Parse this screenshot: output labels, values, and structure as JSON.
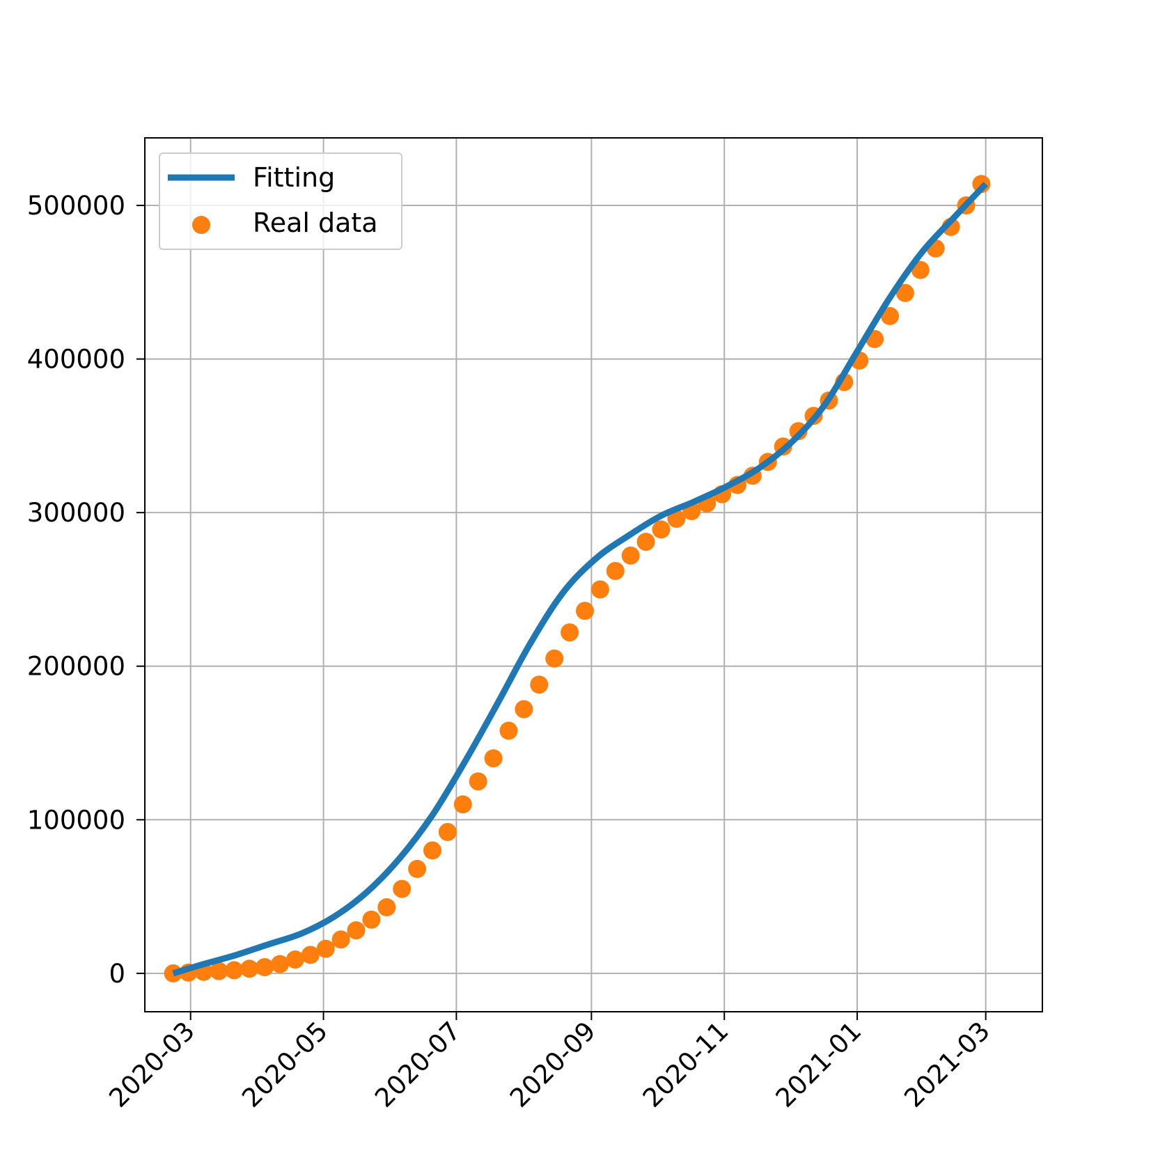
{
  "chart_data": {
    "type": "line",
    "title": "",
    "xlabel": "",
    "ylabel": "",
    "x_axis": {
      "kind": "date",
      "range": [
        "2020-02-09",
        "2021-03-27"
      ],
      "ticks": [
        "2020-03-01",
        "2020-05-01",
        "2020-07-01",
        "2020-09-01",
        "2020-11-01",
        "2021-01-01",
        "2021-03-01"
      ],
      "tick_labels": [
        "2020-03",
        "2020-05",
        "2020-07",
        "2020-09",
        "2020-11",
        "2021-01",
        "2021-03"
      ]
    },
    "y_axis": {
      "range": [
        -25000,
        544000
      ],
      "ticks": [
        0,
        100000,
        200000,
        300000,
        400000,
        500000
      ],
      "tick_labels": [
        "0",
        "100000",
        "200000",
        "300000",
        "400000",
        "500000"
      ]
    },
    "grid": true,
    "legend": {
      "placement": "top-left",
      "entries": [
        "Fitting",
        "Real data"
      ]
    },
    "colors": {
      "fitting": "#1f77b4",
      "real_data": "#ff7f0e",
      "grid": "#b0b0b0"
    },
    "series": [
      {
        "name": "Fitting",
        "kind": "line",
        "x": [
          "2020-02-22",
          "2020-03-07",
          "2020-03-22",
          "2020-04-06",
          "2020-04-21",
          "2020-05-06",
          "2020-05-21",
          "2020-06-05",
          "2020-06-20",
          "2020-07-05",
          "2020-07-20",
          "2020-08-04",
          "2020-08-19",
          "2020-09-03",
          "2020-09-18",
          "2020-10-03",
          "2020-10-18",
          "2020-11-02",
          "2020-11-17",
          "2020-12-02",
          "2020-12-17",
          "2021-01-01",
          "2021-01-16",
          "2021-01-31",
          "2021-02-15",
          "2021-03-01"
        ],
        "y": [
          0,
          6000,
          12000,
          19000,
          26000,
          37000,
          53000,
          75000,
          103000,
          138000,
          176000,
          215000,
          248000,
          270000,
          285000,
          298000,
          307000,
          317000,
          329000,
          346000,
          370000,
          405000,
          440000,
          470000,
          493000,
          514000
        ]
      },
      {
        "name": "Real data",
        "kind": "scatter",
        "x": [
          "2020-02-22",
          "2020-02-29",
          "2020-03-07",
          "2020-03-14",
          "2020-03-21",
          "2020-03-28",
          "2020-04-04",
          "2020-04-11",
          "2020-04-18",
          "2020-04-25",
          "2020-05-02",
          "2020-05-09",
          "2020-05-16",
          "2020-05-23",
          "2020-05-30",
          "2020-06-06",
          "2020-06-13",
          "2020-06-20",
          "2020-06-27",
          "2020-07-04",
          "2020-07-11",
          "2020-07-18",
          "2020-07-25",
          "2020-08-01",
          "2020-08-08",
          "2020-08-15",
          "2020-08-22",
          "2020-08-29",
          "2020-09-05",
          "2020-09-12",
          "2020-09-19",
          "2020-09-26",
          "2020-10-03",
          "2020-10-10",
          "2020-10-17",
          "2020-10-24",
          "2020-10-31",
          "2020-11-07",
          "2020-11-14",
          "2020-11-21",
          "2020-11-28",
          "2020-12-05",
          "2020-12-12",
          "2020-12-19",
          "2020-12-26",
          "2021-01-02",
          "2021-01-09",
          "2021-01-16",
          "2021-01-23",
          "2021-01-30",
          "2021-02-06",
          "2021-02-13",
          "2021-02-20",
          "2021-02-27"
        ],
        "y": [
          0,
          500,
          1000,
          1500,
          2000,
          3000,
          4000,
          6000,
          9000,
          12000,
          16000,
          22000,
          28000,
          35000,
          43000,
          55000,
          68000,
          80000,
          92000,
          110000,
          125000,
          140000,
          158000,
          172000,
          188000,
          205000,
          222000,
          236000,
          250000,
          262000,
          272000,
          281000,
          289000,
          296000,
          301000,
          306000,
          312000,
          318000,
          324000,
          333000,
          343000,
          353000,
          363000,
          373000,
          385000,
          399000,
          413000,
          428000,
          443000,
          458000,
          472000,
          486000,
          500000,
          514000
        ]
      }
    ]
  }
}
